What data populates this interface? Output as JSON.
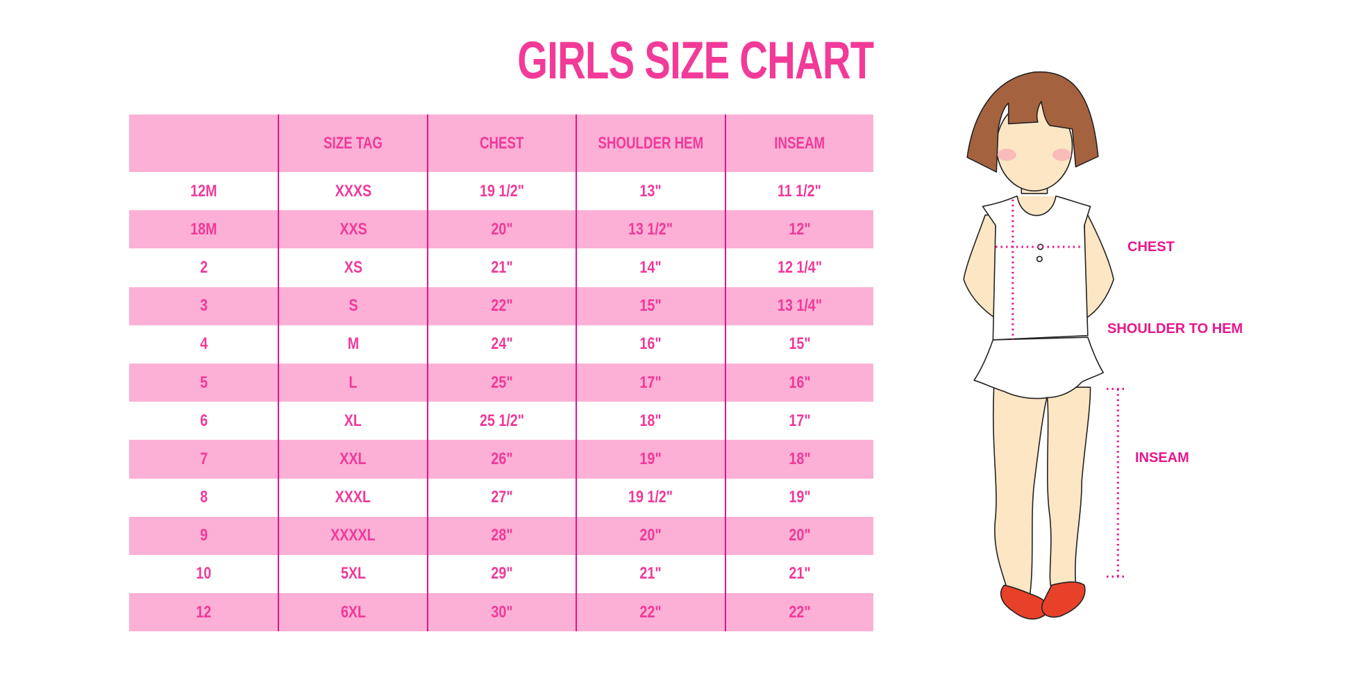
{
  "title": "GIRLS SIZE CHART",
  "table": {
    "headers": [
      "",
      "SIZE TAG",
      "CHEST",
      "SHOULDER HEM",
      "INSEAM"
    ],
    "rows": [
      [
        "12M",
        "XXXS",
        "19 1/2\"",
        "13\"",
        "11 1/2\""
      ],
      [
        "18M",
        "XXS",
        "20\"",
        "13 1/2\"",
        "12\""
      ],
      [
        "2",
        "XS",
        "21\"",
        "14\"",
        "12 1/4\""
      ],
      [
        "3",
        "S",
        "22\"",
        "15\"",
        "13 1/4\""
      ],
      [
        "4",
        "M",
        "24\"",
        "16\"",
        "15\""
      ],
      [
        "5",
        "L",
        "25\"",
        "17\"",
        "16\""
      ],
      [
        "6",
        "XL",
        "25 1/2\"",
        "18\"",
        "17\""
      ],
      [
        "7",
        "XXL",
        "26\"",
        "19\"",
        "18\""
      ],
      [
        "8",
        "XXXL",
        "27\"",
        "19 1/2\"",
        "19\""
      ],
      [
        "9",
        "XXXXL",
        "28\"",
        "20\"",
        "20\""
      ],
      [
        "10",
        "5XL",
        "29\"",
        "21\"",
        "21\""
      ],
      [
        "12",
        "6XL",
        "30\"",
        "22\"",
        "22\""
      ]
    ]
  },
  "figure": {
    "labels": {
      "chest": "CHEST",
      "shoulder_to_hem": "SHOULDER TO HEM",
      "inseam": "INSEAM"
    }
  },
  "colors": {
    "accent": "#f0399a",
    "header_bg": "#fcb0d5",
    "divider": "#e0148a",
    "hair": "#a5623f",
    "skin": "#fde6c4",
    "shoes": "#e8412a"
  }
}
